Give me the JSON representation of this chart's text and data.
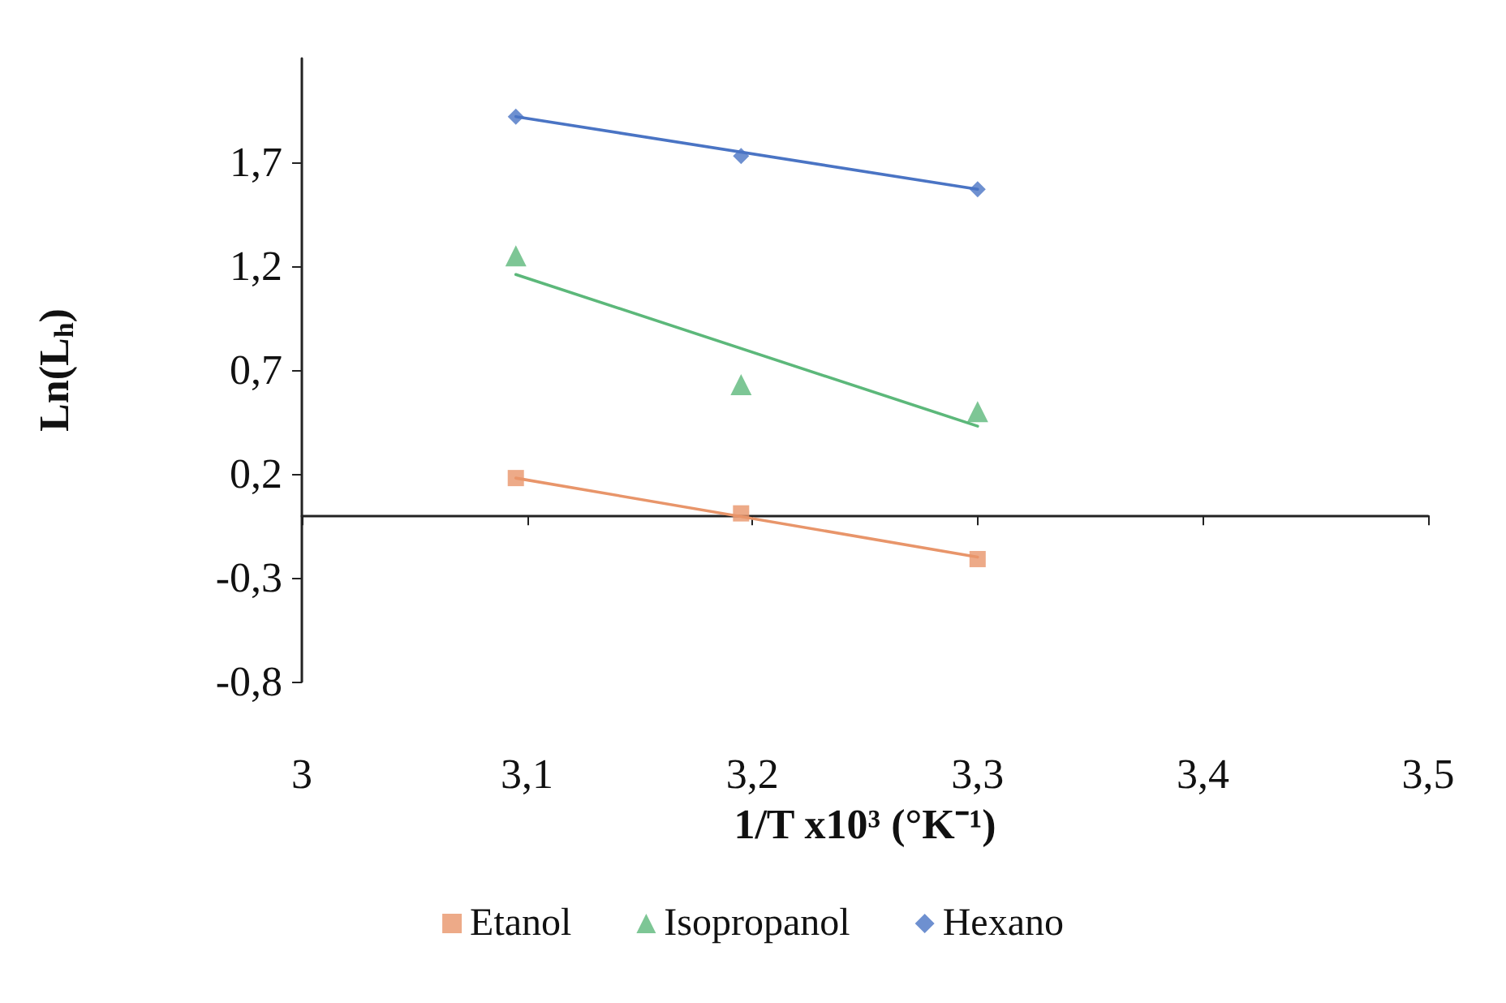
{
  "chart_data": {
    "type": "scatter",
    "xlabel": "1/T x10³ (°K⁻¹)",
    "ylabel": "Ln(L$_{h}$)",
    "xlim": [
      3,
      3.5
    ],
    "xticks": [
      {
        "value": 3,
        "label": "3"
      },
      {
        "value": 3.1,
        "label": "3,1"
      },
      {
        "value": 3.2,
        "label": "3,2"
      },
      {
        "value": 3.3,
        "label": "3,3"
      },
      {
        "value": 3.4,
        "label": "3,4"
      },
      {
        "value": 3.5,
        "label": "3,5"
      }
    ],
    "ylim": [
      -0.8,
      2.2
    ],
    "yticks": [
      {
        "value": -0.8,
        "label": "-0,8"
      },
      {
        "value": -0.3,
        "label": "-0,3"
      },
      {
        "value": 0.2,
        "label": "0,2"
      },
      {
        "value": 0.7,
        "label": "0,7"
      },
      {
        "value": 1.2,
        "label": "1,2"
      },
      {
        "value": 1.7,
        "label": "1,7"
      }
    ],
    "grid": false,
    "legend": "bottom",
    "series": [
      {
        "name": "Etanol",
        "marker": "square",
        "color": "#e8956a",
        "x": [
          3.095,
          3.195,
          3.3
        ],
        "values": [
          0.18,
          0.01,
          -0.21
        ]
      },
      {
        "name": "Isopropanol",
        "marker": "triangle",
        "color": "#5cb87a",
        "x": [
          3.095,
          3.195,
          3.3
        ],
        "values": [
          1.25,
          0.63,
          0.5
        ]
      },
      {
        "name": "Hexano",
        "marker": "diamond",
        "color": "#4a74c4",
        "x": [
          3.095,
          3.195,
          3.3
        ],
        "values": [
          1.92,
          1.73,
          1.57
        ]
      },
      {
        "type": "line",
        "marker": "none",
        "color": "#e8956a",
        "x": [
          3.095,
          3.3
        ],
        "values": [
          0.18,
          -0.2
        ]
      },
      {
        "type": "line",
        "marker": "none",
        "color": "#5cb87a",
        "x": [
          3.095,
          3.3
        ],
        "values": [
          1.16,
          0.43
        ]
      },
      {
        "type": "line",
        "marker": "none",
        "color": "#4a74c4",
        "x": [
          3.095,
          3.3
        ],
        "values": [
          1.92,
          1.57
        ]
      }
    ]
  }
}
